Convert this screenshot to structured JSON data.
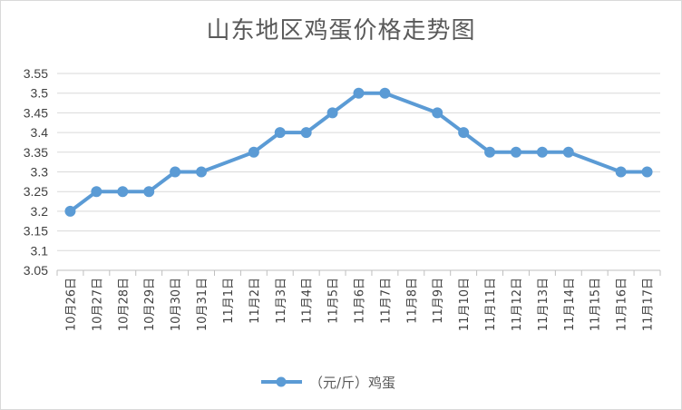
{
  "chart_data": {
    "type": "line",
    "title": "山东地区鸡蛋价格走势图",
    "xlabel": "",
    "ylabel": "",
    "categories": [
      "10月26日",
      "10月27日",
      "10月28日",
      "10月29日",
      "10月30日",
      "10月31日",
      "11月1日",
      "11月2日",
      "11月3日",
      "11月4日",
      "11月5日",
      "11月6日",
      "11月7日",
      "11月8日",
      "11月9日",
      "11月10日",
      "11月11日",
      "11月12日",
      "11月13日",
      "11月14日",
      "11月15日",
      "11月16日",
      "11月17日"
    ],
    "series": [
      {
        "name": "（元/斤）鸡蛋",
        "values": [
          3.2,
          3.25,
          3.25,
          3.25,
          3.3,
          3.3,
          null,
          3.35,
          3.4,
          3.4,
          3.45,
          3.5,
          3.5,
          null,
          3.45,
          3.4,
          3.35,
          3.35,
          3.35,
          3.35,
          null,
          3.3,
          3.3
        ]
      }
    ],
    "ylim": [
      3.05,
      3.55
    ],
    "yticks": [
      "3.05",
      "3.1",
      "3.15",
      "3.2",
      "3.25",
      "3.3",
      "3.35",
      "3.4",
      "3.45",
      "3.5",
      "3.55"
    ],
    "grid": true,
    "legend": "bottom",
    "colors": {
      "line": "#5b9bd5",
      "grid": "#d9d9d9",
      "axis": "#bfbfbf"
    }
  }
}
